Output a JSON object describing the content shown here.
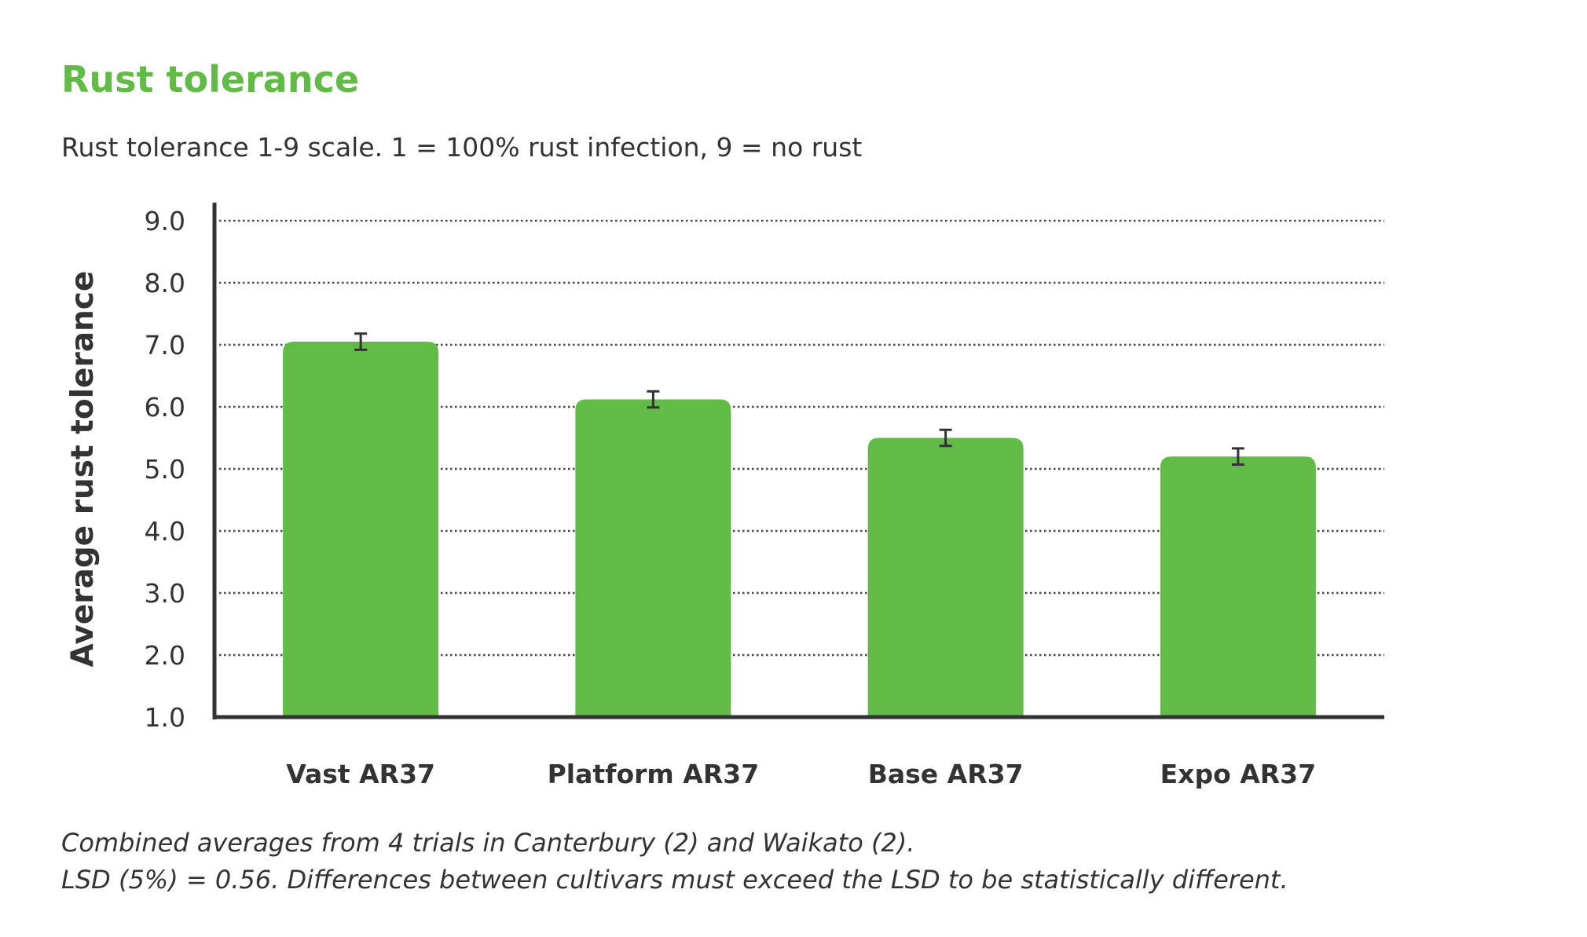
{
  "chart_data": {
    "type": "bar",
    "title": "Rust tolerance",
    "subtitle": "Rust tolerance 1-9 scale. 1 = 100% rust infection, 9 = no rust",
    "ylabel": "Average rust tolerance",
    "xlabel": "",
    "ylim": [
      1.0,
      9.0
    ],
    "yticks": [
      "1.0",
      "2.0",
      "3.0",
      "4.0",
      "5.0",
      "6.0",
      "7.0",
      "8.0",
      "9.0"
    ],
    "grid": true,
    "categories": [
      "Vast AR37",
      "Platform AR37",
      "Base AR37",
      "Expo AR37"
    ],
    "values": [
      7.05,
      6.12,
      5.5,
      5.2
    ],
    "error": [
      0.13,
      0.13,
      0.13,
      0.13
    ],
    "colors": {
      "bar": "#62bb46",
      "axis": "#333333",
      "error_bar": "#333333"
    }
  },
  "notes": [
    "Combined averages from 4 trials in Canterbury (2) and Waikato (2).",
    "LSD (5%) = 0.56. Differences between cultivars must exceed the LSD to be statistically different."
  ]
}
